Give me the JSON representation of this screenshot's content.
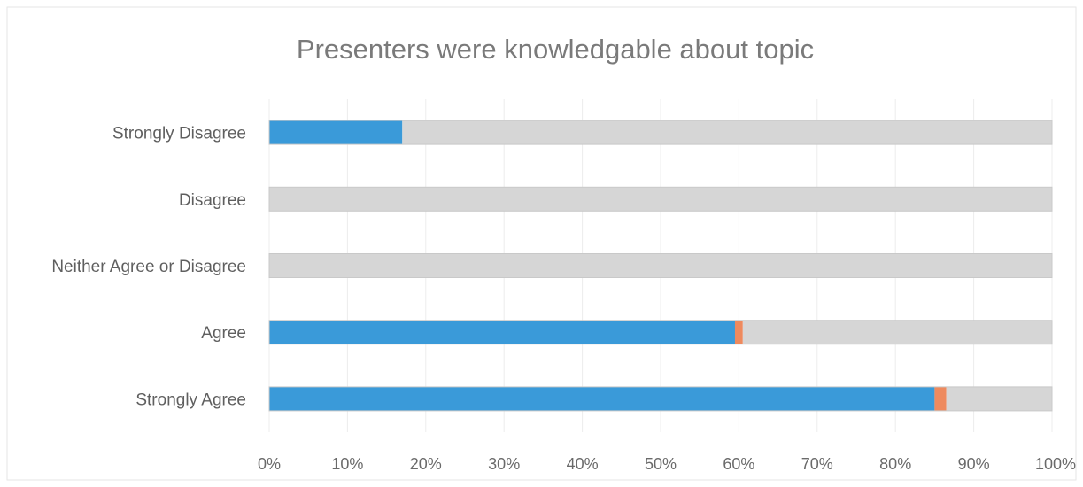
{
  "chart_data": {
    "type": "bar",
    "orientation": "horizontal",
    "stacked": true,
    "percent_stacked": true,
    "title": "Presenters were knowledgable about topic",
    "categories": [
      "Strongly Disagree",
      "Disagree",
      "Neither Agree or Disagree",
      "Agree",
      "Strongly Agree"
    ],
    "series": [
      {
        "values": [
          17,
          0,
          0,
          59.5,
          85
        ],
        "color": "#3a9ad9"
      },
      {
        "values": [
          0,
          0,
          0,
          1,
          1.5
        ],
        "color": "#ee8a5e"
      },
      {
        "values": [
          83,
          100,
          100,
          39.5,
          13.5
        ],
        "color": "#d6d6d6"
      }
    ],
    "xlim": [
      0,
      100
    ],
    "x_ticks": [
      "0%",
      "10%",
      "20%",
      "30%",
      "40%",
      "50%",
      "60%",
      "70%",
      "80%",
      "90%",
      "100%"
    ],
    "x_tick_values": [
      0,
      10,
      20,
      30,
      40,
      50,
      60,
      70,
      80,
      90,
      100
    ],
    "grid": true,
    "legend": "none"
  }
}
